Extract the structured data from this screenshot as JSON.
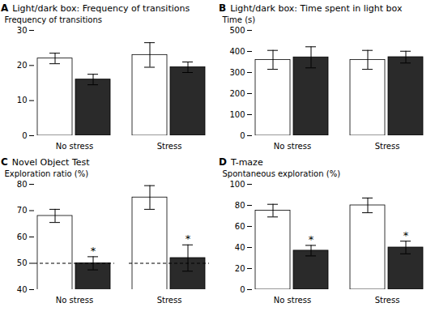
{
  "chart_data": [
    {
      "type": "bar",
      "panel_label": "A",
      "title": "Light/dark box: Frequency of transitions",
      "ylabel": "Frequency of transitions",
      "categories": [
        "No stress",
        "Stress"
      ],
      "series": [
        {
          "color": "#ffffff",
          "values": [
            22,
            23
          ],
          "errors": [
            1.5,
            3.5
          ]
        },
        {
          "color": "#2a2a2a",
          "values": [
            16,
            19.5
          ],
          "errors": [
            1.5,
            1.5
          ]
        }
      ],
      "ylim": [
        0,
        30
      ],
      "yticks": [
        0,
        10,
        20,
        30
      ]
    },
    {
      "type": "bar",
      "panel_label": "B",
      "title": "Light/dark box: Time spent in light box",
      "ylabel": "Time (s)",
      "categories": [
        "No stress",
        "Stress"
      ],
      "series": [
        {
          "color": "#ffffff",
          "values": [
            360,
            360
          ],
          "errors": [
            45,
            45
          ]
        },
        {
          "color": "#2a2a2a",
          "values": [
            372,
            373
          ],
          "errors": [
            50,
            28
          ]
        }
      ],
      "ylim": [
        0,
        500
      ],
      "yticks": [
        0,
        100,
        200,
        300,
        400,
        500
      ]
    },
    {
      "type": "bar",
      "panel_label": "C",
      "title": "Novel Object Test",
      "ylabel": "Exploration ratio (%)",
      "categories": [
        "No stress",
        "Stress"
      ],
      "series": [
        {
          "color": "#ffffff",
          "values": [
            68,
            75
          ],
          "errors": [
            2.5,
            4.5
          ]
        },
        {
          "color": "#2a2a2a",
          "values": [
            50,
            52
          ],
          "errors": [
            2.5,
            5
          ],
          "annotations": [
            "*",
            "*"
          ]
        }
      ],
      "reference_line": 50,
      "ylim": [
        40,
        80
      ],
      "yticks": [
        40,
        50,
        60,
        70,
        80
      ]
    },
    {
      "type": "bar",
      "panel_label": "D",
      "title": "T-maze",
      "ylabel": "Spontaneous exploration (%)",
      "categories": [
        "No stress",
        "Stress"
      ],
      "series": [
        {
          "color": "#ffffff",
          "values": [
            75,
            80
          ],
          "errors": [
            6,
            7
          ]
        },
        {
          "color": "#2a2a2a",
          "values": [
            37,
            40
          ],
          "errors": [
            5,
            6
          ],
          "annotations": [
            "*",
            "*"
          ]
        }
      ],
      "ylim": [
        0,
        100
      ],
      "yticks": [
        0,
        20,
        40,
        60,
        80,
        100
      ]
    }
  ]
}
